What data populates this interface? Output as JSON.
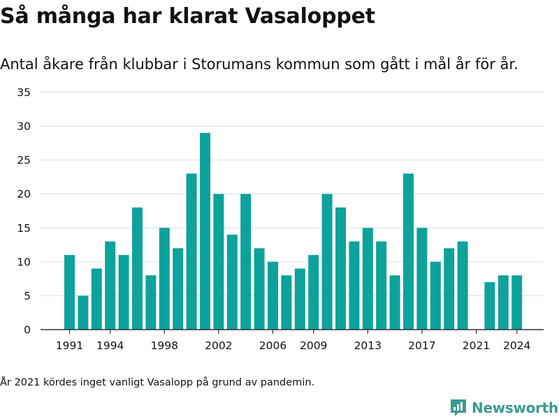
{
  "header": {
    "title": "Så många har klarat Vasaloppet",
    "subtitle": "Antal åkare från klubbar i Storumans kommun som gått i mål år för år."
  },
  "footer": {
    "note": "År 2021 kördes inget vanligt Vasalopp på grund av pandemin.",
    "brand": "Newsworthy",
    "brand_icon": "newsworthy-logo-icon"
  },
  "colors": {
    "bar": "#0da29b",
    "brand": "#3a9a93",
    "grid": "#dedede",
    "axis": "#333333",
    "text": "#111111"
  },
  "chart_data": {
    "type": "bar",
    "x": [
      1991,
      1992,
      1993,
      1994,
      1995,
      1996,
      1997,
      1998,
      1999,
      2000,
      2001,
      2002,
      2003,
      2004,
      2005,
      2006,
      2007,
      2008,
      2009,
      2010,
      2011,
      2012,
      2013,
      2014,
      2015,
      2016,
      2017,
      2018,
      2019,
      2020,
      2021,
      2022,
      2023,
      2024
    ],
    "values": [
      11,
      5,
      9,
      13,
      11,
      18,
      8,
      15,
      12,
      23,
      29,
      20,
      14,
      20,
      12,
      10,
      8,
      9,
      11,
      20,
      18,
      13,
      15,
      13,
      8,
      23,
      15,
      10,
      12,
      13,
      0,
      7,
      8,
      8
    ],
    "x_ticks": [
      "1991",
      "1994",
      "1998",
      "2002",
      "2006",
      "2009",
      "2013",
      "2017",
      "2021",
      "2024"
    ],
    "y_ticks": [
      "0",
      "5",
      "10",
      "15",
      "20",
      "25",
      "30",
      "35"
    ],
    "ylim": [
      0,
      35
    ],
    "grid": true,
    "legend": "none"
  }
}
